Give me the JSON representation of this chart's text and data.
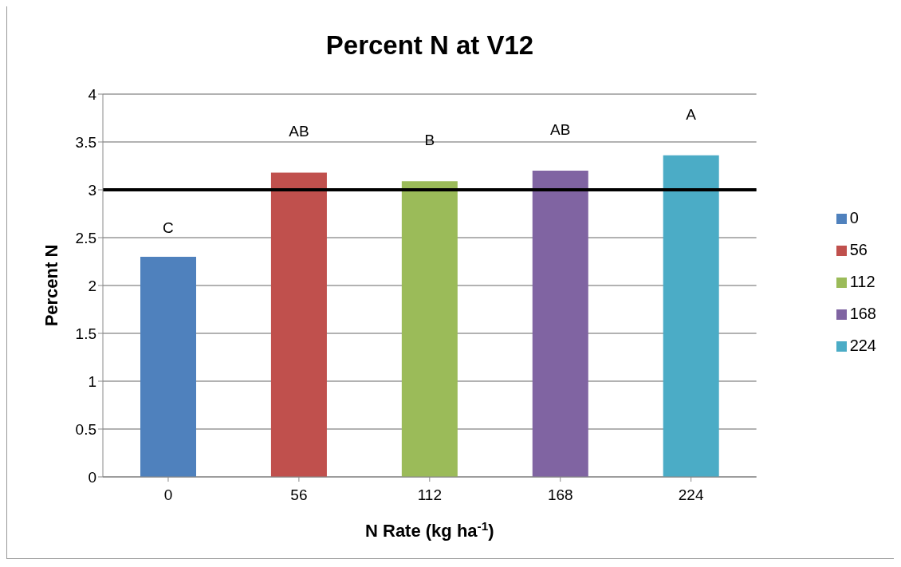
{
  "chart_data": {
    "type": "bar",
    "title": "Percent N at V12",
    "xlabel": "N Rate (kg ha$^{-1}$)",
    "ylabel": "Percent N",
    "categories": [
      "0",
      "56",
      "112",
      "168",
      "224"
    ],
    "series": [
      {
        "name": "0",
        "color": "#4f81bd",
        "values": [
          2.3,
          null,
          null,
          null,
          null
        ]
      },
      {
        "name": "56",
        "color": "#c0504d",
        "values": [
          null,
          3.18,
          null,
          null,
          null
        ]
      },
      {
        "name": "112",
        "color": "#9bbb59",
        "values": [
          null,
          null,
          3.09,
          null,
          null
        ]
      },
      {
        "name": "168",
        "color": "#8064a2",
        "values": [
          null,
          null,
          null,
          3.2,
          null
        ]
      },
      {
        "name": "224",
        "color": "#4bacc6",
        "values": [
          null,
          null,
          null,
          null,
          3.36
        ]
      }
    ],
    "ylim": [
      0,
      4
    ],
    "yticks": [
      0,
      0.5,
      1,
      1.5,
      2,
      2.5,
      3,
      3.5,
      4
    ],
    "grid": "y",
    "legend": "right",
    "ref_lines": [
      {
        "axis": "y",
        "value": 3,
        "color": "#000000"
      }
    ],
    "annotations": [
      {
        "text": "C",
        "x": "0",
        "y": 2.3
      },
      {
        "text": "AB",
        "x": "56",
        "y": 3.18
      },
      {
        "text": "B",
        "x": "112",
        "y": 3.09
      },
      {
        "text": "AB",
        "x": "168",
        "y": 3.2
      },
      {
        "text": "A",
        "x": "224",
        "y": 3.36
      }
    ]
  }
}
